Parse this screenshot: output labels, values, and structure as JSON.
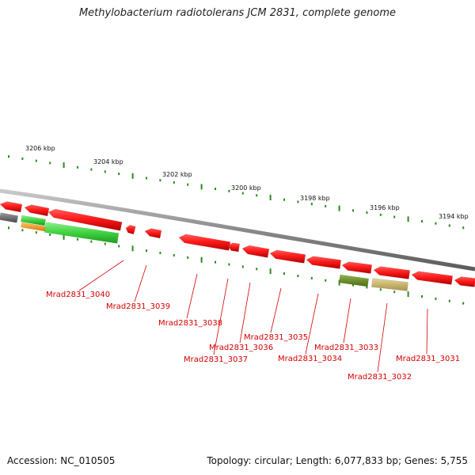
{
  "title": "Methylobacterium radiotolerans JCM 2831, complete genome",
  "footer": {
    "accession": "Accession: NC_010505",
    "summary": "Topology: circular; Length: 6,077,833 bp; Genes: 5,755"
  },
  "colors": {
    "backbone": "#8a8a8a",
    "tick": "#2a8a1e",
    "label": "#d40000",
    "gene_red": "#ff1a1a",
    "gene_gray": "#6b6b6b",
    "gene_green": "#3fd23f",
    "gene_orange": "#ff9900",
    "gene_olive": "#6b8e23",
    "gene_khaki": "#c8b560"
  },
  "scale": {
    "unit": "kbp",
    "labels": [
      "3206 kbp",
      "3204 kbp",
      "3202 kbp",
      "3200 kbp",
      "3198 kbp",
      "3196 kbp",
      "3194 kbp"
    ]
  },
  "genes": [
    {
      "label": "Mrad2831_3040"
    },
    {
      "label": "Mrad2831_3039"
    },
    {
      "label": "Mrad2831_3038"
    },
    {
      "label": "Mrad2831_3037"
    },
    {
      "label": "Mrad2831_3036"
    },
    {
      "label": "Mrad2831_3035"
    },
    {
      "label": "Mrad2831_3034"
    },
    {
      "label": "Mrad2831_3033"
    },
    {
      "label": "Mrad2831_3032"
    },
    {
      "label": "Mrad2831_3031"
    }
  ]
}
